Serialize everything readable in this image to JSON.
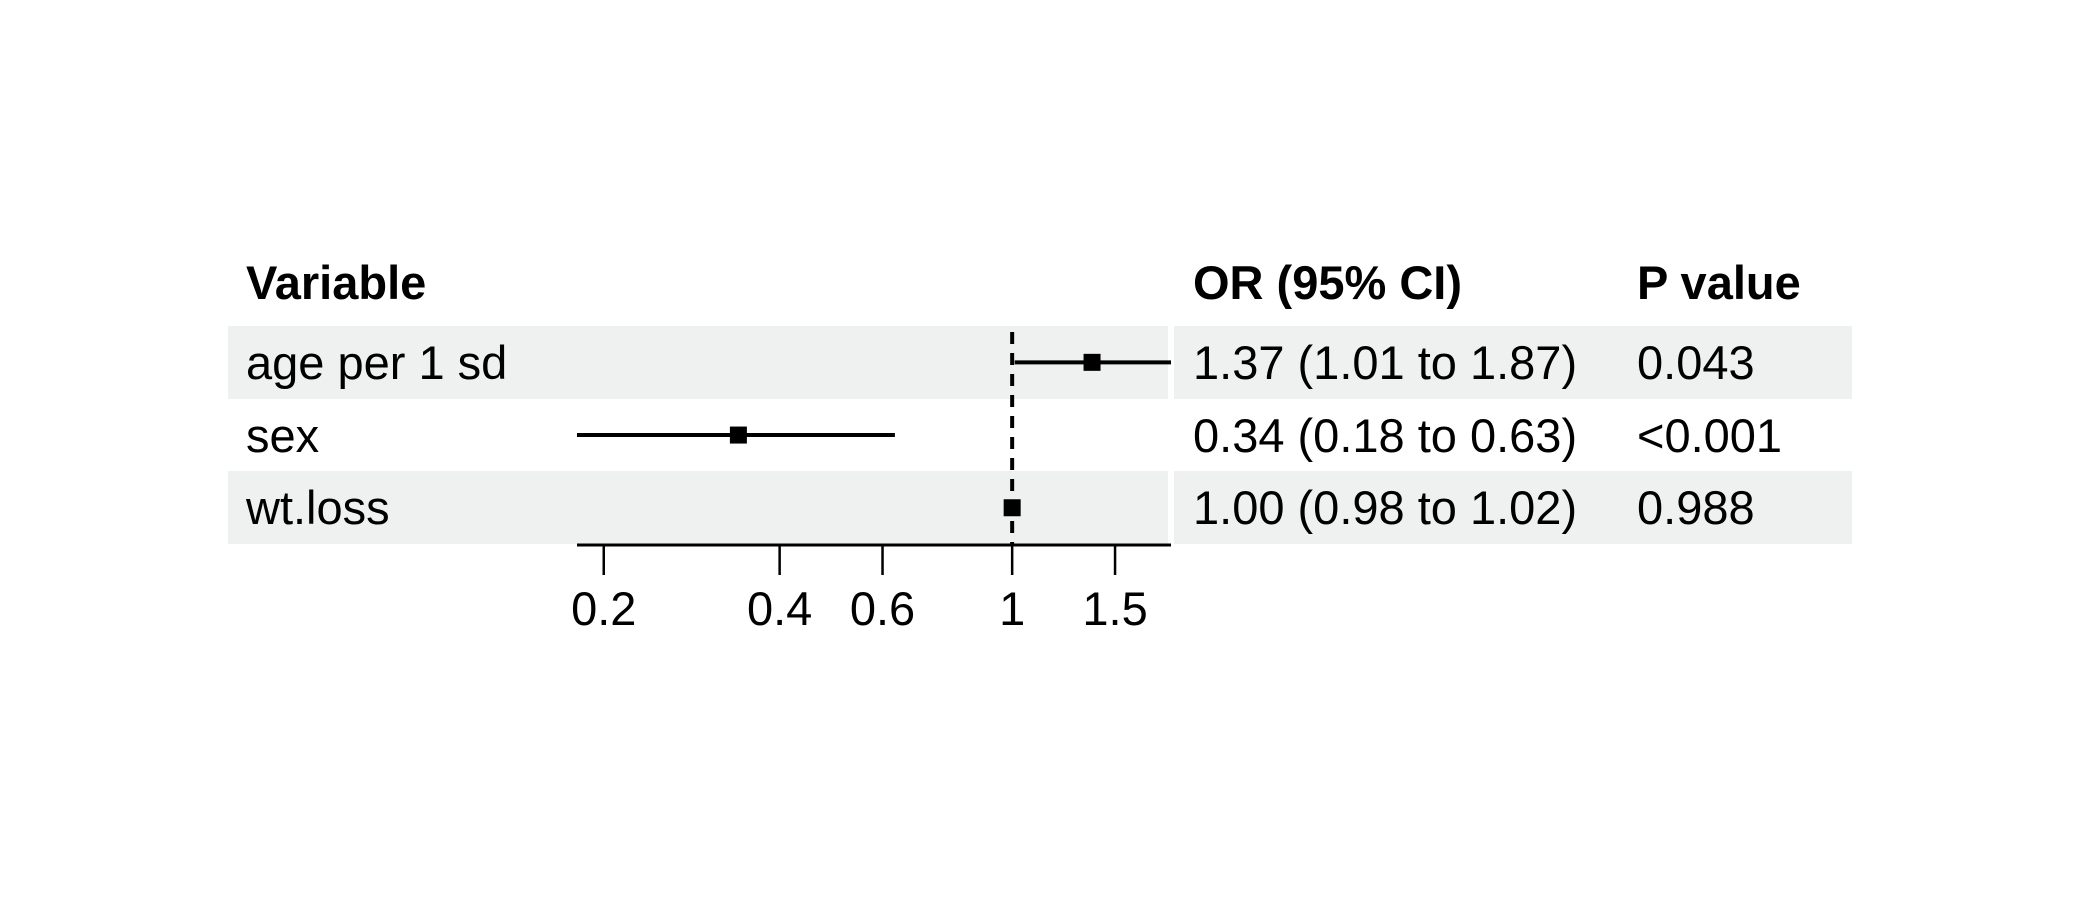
{
  "chart_data": {
    "type": "forest-plot",
    "columns": [
      "Variable",
      "OR (95% CI)",
      "P value"
    ],
    "rows": [
      {
        "label": "age per 1 sd",
        "or": 1.37,
        "ci_low": 1.01,
        "ci_high": 1.87,
        "or_text": "1.37 (1.01 to 1.87)",
        "p_text": "0.043",
        "shaded": true
      },
      {
        "label": "sex",
        "or": 0.34,
        "ci_low": 0.18,
        "ci_high": 0.63,
        "or_text": "0.34 (0.18 to 0.63)",
        "p_text": "<0.001",
        "shaded": false
      },
      {
        "label": "wt.loss",
        "or": 1.0,
        "ci_low": 0.98,
        "ci_high": 1.02,
        "or_text": "1.00 (0.98 to 1.02)",
        "p_text": "0.988",
        "shaded": true
      }
    ],
    "x_axis": {
      "scale": "log",
      "ticks": [
        0.2,
        0.4,
        0.6,
        1,
        1.5
      ],
      "tick_labels": [
        "0.2",
        "0.4",
        "0.6",
        "1",
        "1.5"
      ],
      "range": [
        0.18,
        1.87
      ],
      "reference_line": 1
    },
    "legend": null,
    "grid": "off",
    "colors": {
      "band": "#eef1f0",
      "marker": "#000000",
      "line": "#000000",
      "text": "#000000",
      "background": "#ffffff"
    }
  }
}
